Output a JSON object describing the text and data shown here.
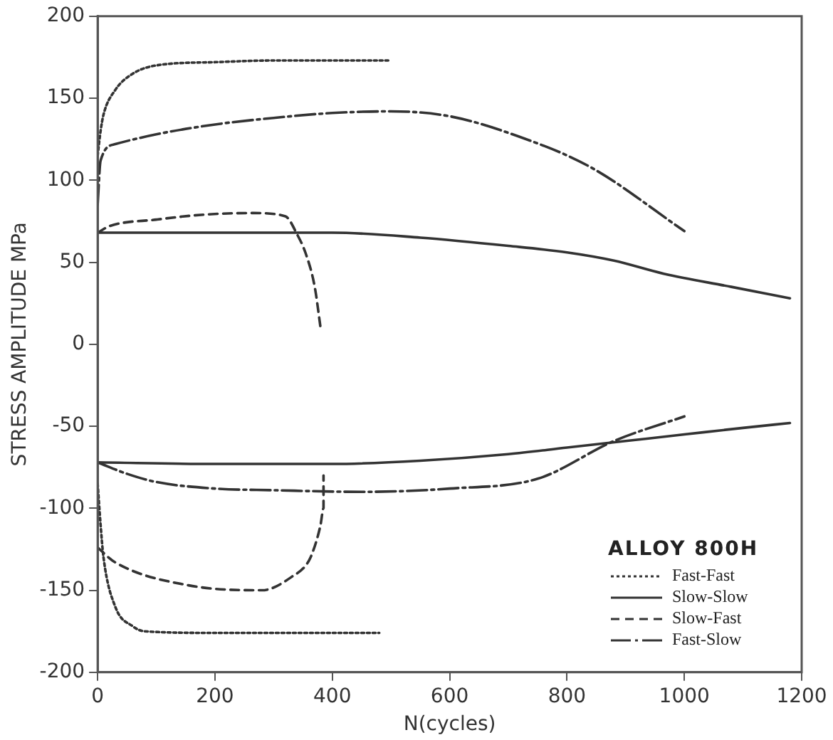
{
  "chart_data": {
    "type": "line",
    "xlabel": "N(cycles)",
    "ylabel": "STRESS AMPLITUDE MPa",
    "legend_title": "ALLOY 800H",
    "legend": "bottom right",
    "grid": false,
    "marker": "none",
    "xlim": [
      0,
      1200
    ],
    "xticks": [
      0,
      200,
      400,
      600,
      800,
      1000,
      1200
    ],
    "ylim": [
      -200,
      200
    ],
    "yticks": [
      -200,
      -150,
      -100,
      -50,
      0,
      50,
      100,
      150,
      200
    ],
    "series": [
      {
        "name": "Fast-Fast",
        "color": "#333333",
        "line_style": "dotted",
        "x": [
          0,
          5,
          10,
          30,
          60,
          100,
          200,
          300,
          400,
          500
        ],
        "values": [
          115,
          130,
          140,
          155,
          165,
          170,
          172,
          173,
          173,
          173
        ]
      },
      {
        "name": "Slow-Slow",
        "color": "#333333",
        "line_style": "solid",
        "x": [
          0,
          200,
          400,
          550,
          700,
          800,
          880,
          965,
          1080,
          1180
        ],
        "values": [
          68,
          68,
          68,
          65,
          60,
          56,
          51,
          43,
          35,
          28
        ]
      },
      {
        "name": "Slow-Fast",
        "color": "#333333",
        "line_style": "dashed",
        "x": [
          0,
          20,
          100,
          180,
          265,
          320,
          340,
          355,
          370,
          380
        ],
        "values": [
          68,
          72,
          76,
          79,
          80,
          78,
          67,
          55,
          35,
          10
        ]
      },
      {
        "name": "Fast-Slow",
        "color": "#333333",
        "line_style": "dashdot",
        "x": [
          0,
          5,
          30,
          100,
          200,
          300,
          400,
          500,
          600,
          715,
          840,
          1000
        ],
        "values": [
          85,
          112,
          122,
          128,
          134,
          138,
          141,
          142,
          139,
          127,
          108,
          69
        ]
      },
      {
        "color": "#333333",
        "line_style": "dotted",
        "x": [
          0,
          5,
          10,
          30,
          60,
          80,
          200,
          300,
          480
        ],
        "values": [
          -85,
          -110,
          -130,
          -160,
          -172,
          -175,
          -176,
          -176,
          -176
        ]
      },
      {
        "color": "#333333",
        "line_style": "solid",
        "x": [
          0,
          200,
          400,
          550,
          700,
          800,
          900,
          1000,
          1100,
          1180
        ],
        "values": [
          -72,
          -73,
          -73,
          -71,
          -67,
          -63,
          -59,
          -55,
          -51,
          -48
        ]
      },
      {
        "color": "#333333",
        "line_style": "dashed",
        "x": [
          0,
          30,
          155,
          280,
          330,
          360,
          372,
          380,
          385,
          385
        ],
        "values": [
          -124,
          -133,
          -147,
          -150,
          -142,
          -132,
          -121,
          -110,
          -100,
          -80
        ]
      },
      {
        "color": "#333333",
        "line_style": "dashdot",
        "x": [
          0,
          50,
          100,
          200,
          300,
          450,
          600,
          750,
          880,
          1000
        ],
        "values": [
          -72,
          -79,
          -84,
          -88,
          -89,
          -90,
          -88,
          -82,
          -59,
          -44
        ]
      }
    ]
  }
}
